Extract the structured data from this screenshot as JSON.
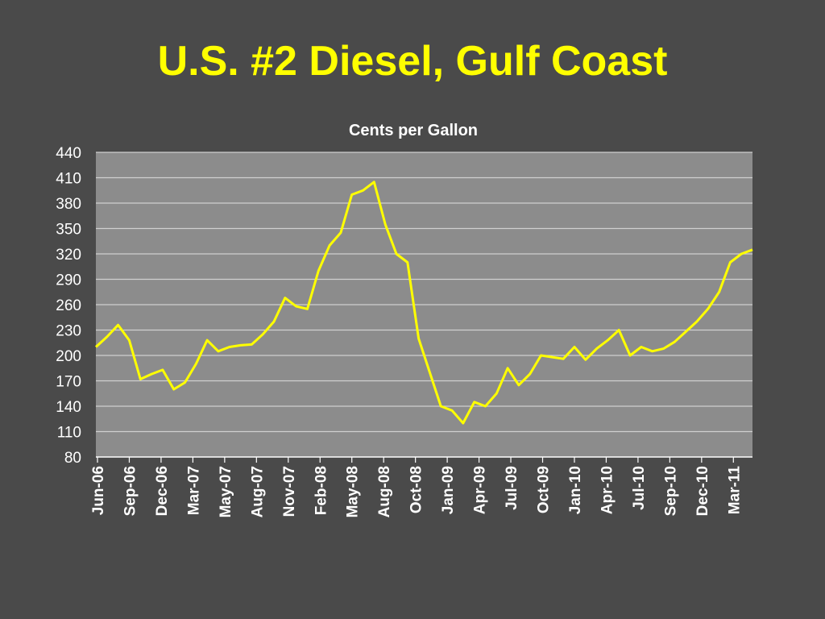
{
  "slide": {
    "title": "U.S. #2 Diesel, Gulf Coast"
  },
  "colors": {
    "background": "#4a4a4a",
    "plot_area": "#8c8c8c",
    "line": "#ffff00",
    "title": "#ffff00",
    "text": "#ffffff",
    "gridline": "#d0d0d0"
  },
  "chart_data": {
    "type": "line",
    "title": "",
    "subtitle": "Cents per Gallon",
    "xlabel": "",
    "ylabel": "",
    "ylim": [
      80,
      440
    ],
    "yticks": [
      80,
      110,
      140,
      170,
      200,
      230,
      260,
      290,
      320,
      350,
      380,
      410,
      440
    ],
    "grid": true,
    "legend": "none",
    "xlim": [
      "2006-06",
      "2011-05"
    ],
    "xtick_labels": [
      "Jun-06",
      "Sep-06",
      "Dec-06",
      "Mar-07",
      "May-07",
      "Aug-07",
      "Nov-07",
      "Feb-08",
      "May-08",
      "Aug-08",
      "Oct-08",
      "Jan-09",
      "Apr-09",
      "Jul-09",
      "Oct-09",
      "Jan-10",
      "Apr-10",
      "Jul-10",
      "Sep-10",
      "Dec-10",
      "Mar-11"
    ],
    "series": [
      {
        "x": [
          "2006-06",
          "2006-07",
          "2006-08",
          "2006-09",
          "2006-10",
          "2006-11",
          "2006-12",
          "2007-01",
          "2007-02",
          "2007-03",
          "2007-04",
          "2007-05",
          "2007-06",
          "2007-07",
          "2007-08",
          "2007-09",
          "2007-10",
          "2007-11",
          "2007-12",
          "2008-01",
          "2008-02",
          "2008-03",
          "2008-04",
          "2008-05",
          "2008-06",
          "2008-07",
          "2008-08",
          "2008-09",
          "2008-10",
          "2008-11",
          "2008-12",
          "2009-01",
          "2009-02",
          "2009-03",
          "2009-04",
          "2009-05",
          "2009-06",
          "2009-07",
          "2009-08",
          "2009-09",
          "2009-10",
          "2009-11",
          "2009-12",
          "2010-01",
          "2010-02",
          "2010-03",
          "2010-04",
          "2010-05",
          "2010-06",
          "2010-07",
          "2010-08",
          "2010-09",
          "2010-10",
          "2010-11",
          "2010-12",
          "2011-01",
          "2011-02",
          "2011-03",
          "2011-04",
          "2011-05"
        ],
        "values": [
          210,
          222,
          236,
          218,
          172,
          178,
          183,
          160,
          168,
          190,
          218,
          205,
          210,
          212,
          213,
          225,
          240,
          268,
          258,
          255,
          300,
          330,
          345,
          390,
          395,
          405,
          355,
          320,
          310,
          220,
          180,
          140,
          135,
          120,
          145,
          140,
          155,
          185,
          165,
          178,
          200,
          198,
          196,
          210,
          195,
          208,
          218,
          230,
          200,
          210,
          205,
          208,
          216,
          228,
          240,
          255,
          275,
          310,
          320,
          325
        ]
      }
    ]
  }
}
